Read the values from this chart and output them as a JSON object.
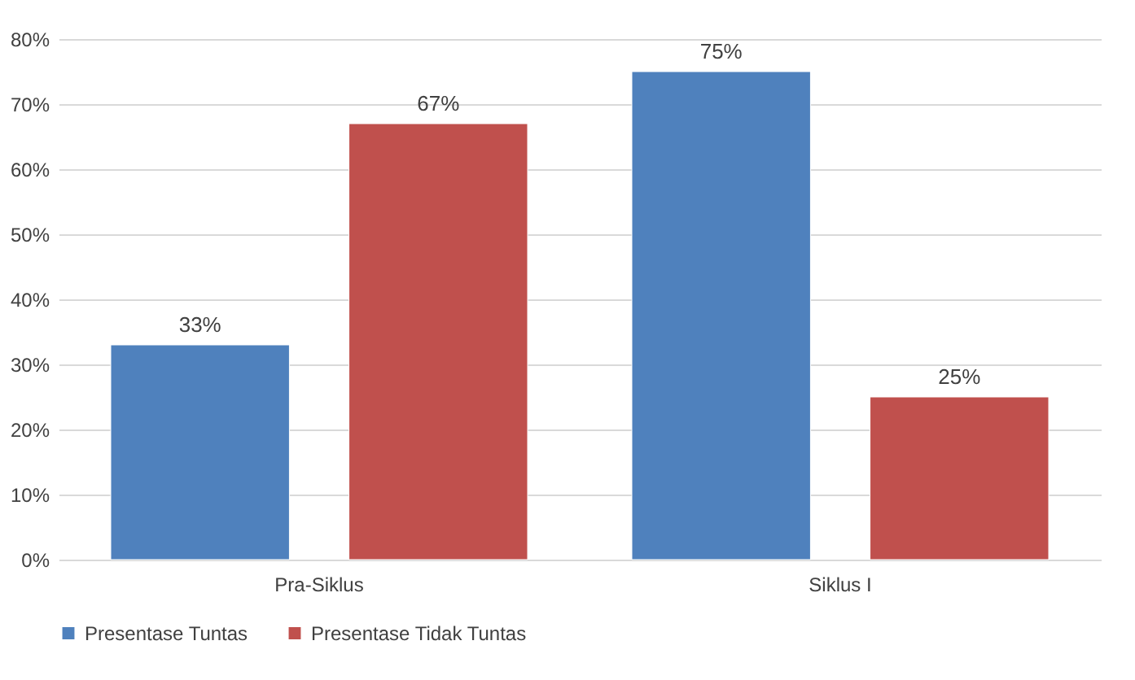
{
  "chart_data": {
    "type": "bar",
    "categories": [
      "Pra-Siklus",
      "Siklus I"
    ],
    "series": [
      {
        "name": "Presentase Tuntas",
        "color": "#4f81bd",
        "values": [
          33,
          75
        ],
        "value_labels": [
          "33%",
          "75%"
        ]
      },
      {
        "name": "Presentase Tidak Tuntas",
        "color": "#c0504d",
        "values": [
          67,
          25
        ],
        "value_labels": [
          "67%",
          "25%"
        ]
      }
    ],
    "ylim": [
      0,
      80
    ],
    "yticks": [
      {
        "value": 0,
        "label": "0%"
      },
      {
        "value": 10,
        "label": "10%"
      },
      {
        "value": 20,
        "label": "20%"
      },
      {
        "value": 30,
        "label": "30%"
      },
      {
        "value": 40,
        "label": "40%"
      },
      {
        "value": 50,
        "label": "50%"
      },
      {
        "value": 60,
        "label": "60%"
      },
      {
        "value": 70,
        "label": "70%"
      },
      {
        "value": 80,
        "label": "80%"
      }
    ],
    "grid": "y",
    "legend": "bottom"
  }
}
